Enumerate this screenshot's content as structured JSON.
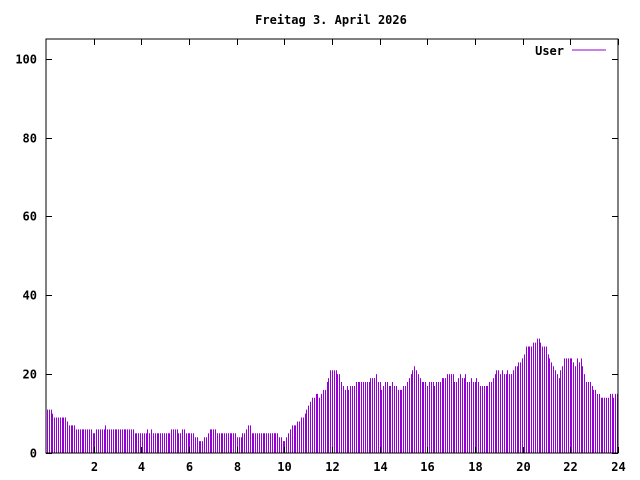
{
  "chart_data": {
    "type": "bar",
    "title": "Freitag 3. April 2026",
    "xlabel": "",
    "ylabel": "",
    "xlim": [
      0,
      24
    ],
    "ylim": [
      0,
      105
    ],
    "x_ticks": [
      2,
      4,
      6,
      8,
      10,
      12,
      14,
      16,
      18,
      20,
      22,
      24
    ],
    "y_ticks": [
      0,
      20,
      40,
      60,
      80,
      100
    ],
    "grid": false,
    "legend_position": "top-right",
    "series": [
      {
        "name": "User",
        "color": "#9400d3",
        "values": [
          11,
          11,
          11,
          10,
          9,
          9,
          9,
          9,
          9,
          9,
          9,
          8,
          7,
          7,
          7,
          7,
          6,
          6,
          6,
          6,
          6,
          6,
          6,
          6,
          6,
          5,
          5,
          6,
          6,
          6,
          6,
          6,
          7,
          6,
          6,
          6,
          6,
          6,
          6,
          6,
          6,
          6,
          6,
          6,
          6,
          6,
          6,
          6,
          5,
          5,
          5,
          5,
          5,
          5,
          5,
          6,
          5,
          6,
          5,
          5,
          5,
          5,
          5,
          5,
          5,
          5,
          5,
          5,
          6,
          6,
          6,
          6,
          5,
          5,
          6,
          6,
          5,
          5,
          5,
          5,
          5,
          4,
          4,
          3,
          3,
          3,
          4,
          4,
          5,
          6,
          6,
          6,
          6,
          5,
          5,
          5,
          5,
          5,
          5,
          5,
          5,
          5,
          5,
          5,
          4,
          4,
          4,
          5,
          5,
          6,
          7,
          7,
          5,
          5,
          5,
          5,
          5,
          5,
          5,
          5,
          5,
          5,
          5,
          5,
          5,
          5,
          5,
          4,
          4,
          3,
          3,
          4,
          5,
          6,
          7,
          7,
          7,
          8,
          8,
          9,
          9,
          10,
          11,
          12,
          13,
          14,
          14,
          15,
          15,
          14,
          15,
          16,
          16,
          18,
          19,
          21,
          21,
          21,
          21,
          20,
          20,
          18,
          17,
          16,
          17,
          16,
          17,
          17,
          17,
          18,
          18,
          18,
          18,
          18,
          18,
          18,
          18,
          19,
          19,
          19,
          20,
          18,
          18,
          16,
          17,
          18,
          18,
          17,
          17,
          18,
          17,
          17,
          16,
          16,
          16,
          17,
          17,
          18,
          19,
          20,
          21,
          22,
          21,
          20,
          19,
          18,
          18,
          18,
          17,
          18,
          18,
          18,
          17,
          18,
          18,
          18,
          19,
          19,
          19,
          20,
          20,
          20,
          20,
          18,
          18,
          19,
          20,
          19,
          19,
          20,
          18,
          18,
          19,
          18,
          18,
          19,
          18,
          17,
          17,
          17,
          17,
          17,
          18,
          18,
          19,
          20,
          21,
          21,
          20,
          21,
          20,
          20,
          21,
          20,
          20,
          21,
          22,
          22,
          23,
          23,
          24,
          25,
          27,
          27,
          27,
          27,
          28,
          28,
          29,
          29,
          28,
          27,
          27,
          27,
          25,
          24,
          23,
          22,
          21,
          20,
          19,
          21,
          22,
          24,
          24,
          24,
          24,
          24,
          23,
          22,
          24,
          23,
          24,
          22,
          20,
          18,
          18,
          18,
          17,
          16,
          16,
          15,
          15,
          14,
          14,
          14,
          14,
          14,
          15,
          15,
          14,
          15,
          15
        ]
      }
    ]
  }
}
